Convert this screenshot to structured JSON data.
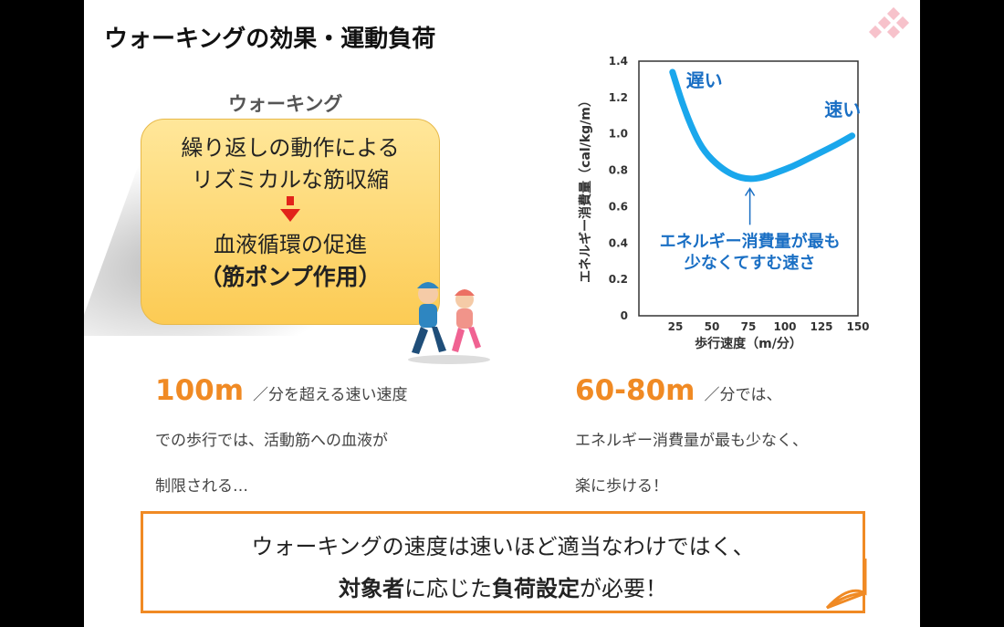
{
  "slide": {
    "title": "ウォーキングの効果・運動負荷",
    "walk_label": "ウォーキング",
    "box": {
      "line1": "繰り返しの動作による",
      "line2": "リズミカルな筋収縮",
      "line3": "血液循環の促進",
      "line4": "（筋ポンプ作用）"
    },
    "left_para": {
      "big": "100m",
      "rest1": "／分を超える速い速度",
      "line2": "での歩行では、活動筋への血液が",
      "line3": "制限される…"
    },
    "right_para": {
      "big": "60-80m",
      "rest1": "／分では、",
      "line2": "エネルギー消費量が最も少なく、",
      "line3": "楽に歩ける！"
    },
    "bottom": {
      "line1": "ウォーキングの速度は速いほど適当なわけではく、",
      "line2_b1": "対象者",
      "line2_t1": "に応じた",
      "line2_b2": "負荷設定",
      "line2_t2": "が必要！"
    }
  },
  "chart_data": {
    "type": "line",
    "xlabel": "歩行速度（m/分）",
    "ylabel": "エネルギー消費量（cal/kg/m）",
    "x_ticks": [
      "25",
      "50",
      "75",
      "100",
      "125",
      "150"
    ],
    "y_ticks": [
      "0",
      "0.2",
      "0.4",
      "0.6",
      "0.8",
      "1.0",
      "1.2",
      "1.4"
    ],
    "xlim": [
      0,
      150
    ],
    "ylim": [
      0,
      1.4
    ],
    "series": [
      {
        "x": [
          23,
          30,
          38,
          45,
          55,
          65,
          75,
          85,
          95,
          105,
          115,
          125,
          135,
          146
        ],
        "y": [
          1.34,
          1.16,
          1.0,
          0.9,
          0.82,
          0.77,
          0.75,
          0.76,
          0.79,
          0.82,
          0.86,
          0.9,
          0.94,
          0.99
        ]
      }
    ],
    "annotations": {
      "slow": "遅い",
      "fast": "速い",
      "min_line1": "エネルギー消費量が最も",
      "min_line2": "少なくてすむ速さ"
    },
    "colors": {
      "line": "#1aa7ec",
      "annotation": "#1a6fc4",
      "axis": "#333333"
    }
  }
}
